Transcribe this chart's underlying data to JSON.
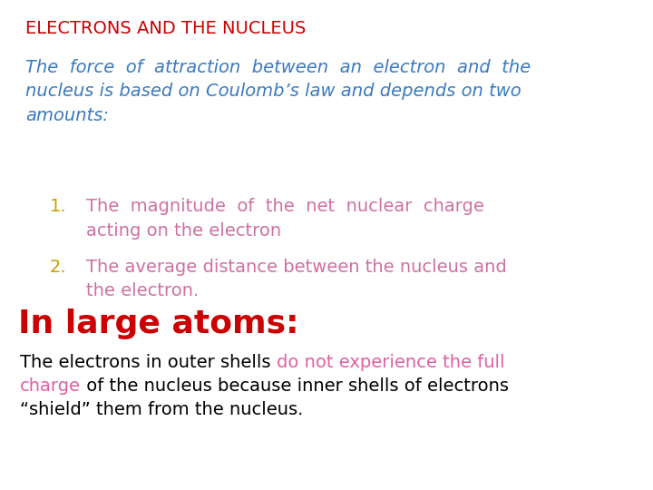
{
  "title": "ELECTRONS AND THE NUCLEUS",
  "title_color": "#cc0000",
  "title_fontsize": 14,
  "bg_color": "#ffffff",
  "para1_color": "#3a7abf",
  "para1_text": "The  force  of  attraction  between  an  electron  and  the\nnucleus is based on Coulomb’s law and depends on two\namounts:",
  "para1_fontsize": 14,
  "bullet_num_color": "#c8a000",
  "bullet_text_color": "#d070a0",
  "bullet1_num": "1.",
  "bullet1_text": "The  magnitude  of  the  net  nuclear  charge\nacting on the electron",
  "bullet2_num": "2.",
  "bullet2_text": "The average distance between the nucleus and\nthe electron.",
  "bullet_fontsize": 14,
  "heading2": "In large atoms:",
  "heading2_color": "#cc0000",
  "heading2_fontsize": 26,
  "para2_seg1": "The electrons in outer shells ",
  "para2_seg2": "do not experience the full",
  "para2_seg3": "charge",
  "para2_seg4": " of the nucleus because inner shells of electrons",
  "para2_seg5": "“shield” them from the nucleus.",
  "para2_black_color": "#000000",
  "para2_pink_color": "#e060a0",
  "para2_fontsize": 14,
  "fig_w": 7.2,
  "fig_h": 5.4,
  "dpi": 100
}
